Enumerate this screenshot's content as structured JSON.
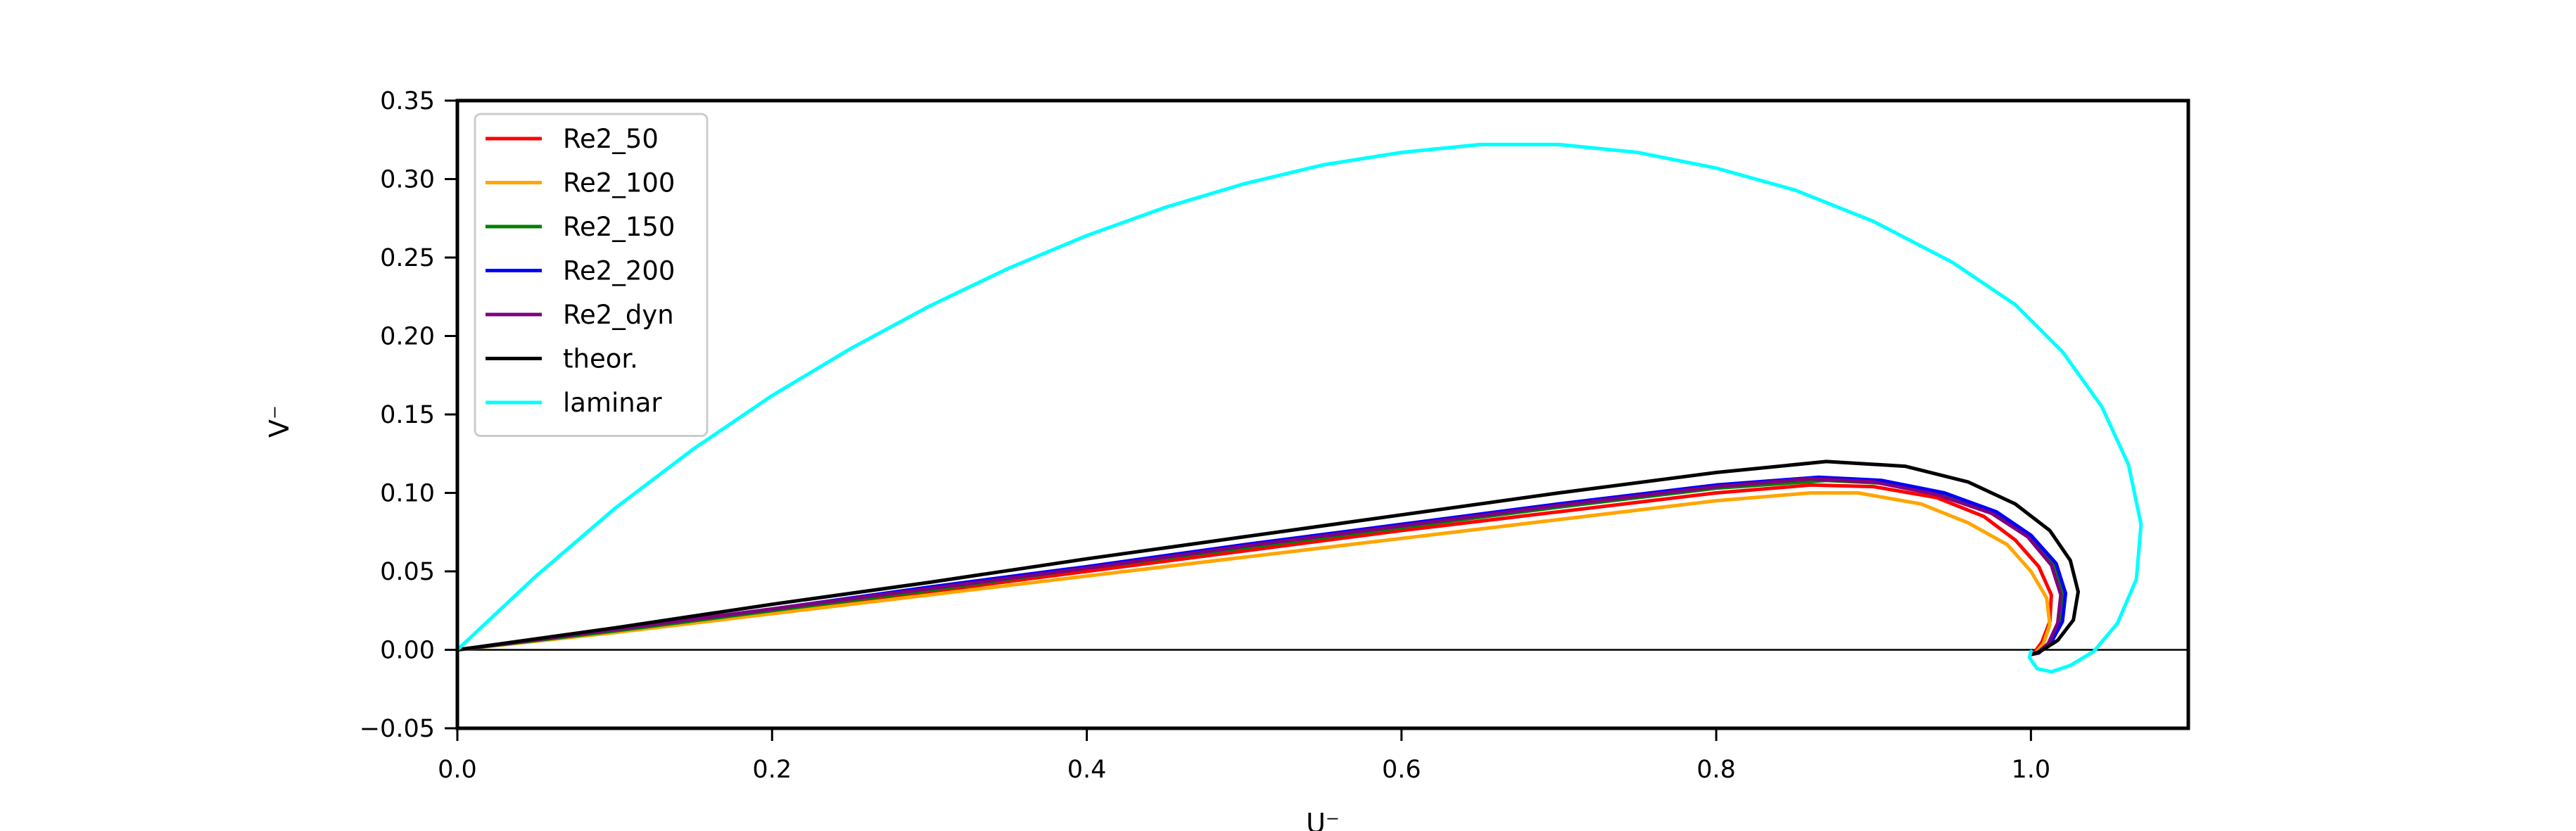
{
  "chart_data": {
    "type": "line",
    "title": "",
    "xlabel": "U⁻",
    "ylabel": "V⁻",
    "xlim": [
      0.0,
      1.1
    ],
    "ylim": [
      -0.05,
      0.35
    ],
    "xticks": [
      0.0,
      0.2,
      0.4,
      0.6,
      0.8,
      1.0
    ],
    "xtick_labels": [
      "0.0",
      "0.2",
      "0.4",
      "0.6",
      "0.8",
      "1.0"
    ],
    "yticks": [
      -0.05,
      0.0,
      0.05,
      0.1,
      0.15,
      0.2,
      0.25,
      0.3,
      0.35
    ],
    "ytick_labels": [
      "−0.05",
      "0.00",
      "0.05",
      "0.10",
      "0.15",
      "0.20",
      "0.25",
      "0.30",
      "0.35"
    ],
    "grid": false,
    "legend_position": "top-left",
    "zero_line": 0.0,
    "series": [
      {
        "name": "Re2_50",
        "color": "#ff0000",
        "points": [
          [
            0.0,
            0.0
          ],
          [
            0.1,
            0.012
          ],
          [
            0.2,
            0.024
          ],
          [
            0.3,
            0.037
          ],
          [
            0.4,
            0.05
          ],
          [
            0.5,
            0.063
          ],
          [
            0.6,
            0.076
          ],
          [
            0.7,
            0.088
          ],
          [
            0.8,
            0.1
          ],
          [
            0.86,
            0.105
          ],
          [
            0.9,
            0.104
          ],
          [
            0.94,
            0.097
          ],
          [
            0.97,
            0.085
          ],
          [
            0.99,
            0.07
          ],
          [
            1.005,
            0.053
          ],
          [
            1.013,
            0.035
          ],
          [
            1.012,
            0.018
          ],
          [
            1.007,
            0.005
          ],
          [
            1.002,
            -0.002
          ],
          [
            1.0,
            -0.003
          ]
        ]
      },
      {
        "name": "Re2_100",
        "color": "#ffa500",
        "points": [
          [
            0.0,
            0.0
          ],
          [
            0.1,
            0.011
          ],
          [
            0.2,
            0.023
          ],
          [
            0.3,
            0.035
          ],
          [
            0.4,
            0.047
          ],
          [
            0.5,
            0.059
          ],
          [
            0.6,
            0.071
          ],
          [
            0.7,
            0.083
          ],
          [
            0.8,
            0.095
          ],
          [
            0.86,
            0.1
          ],
          [
            0.89,
            0.1
          ],
          [
            0.93,
            0.093
          ],
          [
            0.96,
            0.081
          ],
          [
            0.985,
            0.067
          ],
          [
            1.0,
            0.05
          ],
          [
            1.01,
            0.033
          ],
          [
            1.012,
            0.016
          ],
          [
            1.008,
            0.004
          ],
          [
            1.003,
            -0.002
          ],
          [
            1.0,
            -0.003
          ]
        ]
      },
      {
        "name": "Re2_150",
        "color": "#008000",
        "points": [
          [
            0.0,
            0.0
          ],
          [
            0.1,
            0.012
          ],
          [
            0.2,
            0.025
          ],
          [
            0.3,
            0.038
          ],
          [
            0.4,
            0.052
          ],
          [
            0.5,
            0.065
          ],
          [
            0.6,
            0.078
          ],
          [
            0.7,
            0.091
          ],
          [
            0.8,
            0.103
          ],
          [
            0.87,
            0.108
          ],
          [
            0.91,
            0.106
          ],
          [
            0.95,
            0.098
          ],
          [
            0.98,
            0.086
          ],
          [
            1.0,
            0.072
          ],
          [
            1.015,
            0.054
          ],
          [
            1.021,
            0.035
          ],
          [
            1.019,
            0.017
          ],
          [
            1.012,
            0.004
          ],
          [
            1.004,
            -0.002
          ],
          [
            1.0,
            -0.003
          ]
        ]
      },
      {
        "name": "Re2_200",
        "color": "#0000ff",
        "points": [
          [
            0.0,
            0.0
          ],
          [
            0.1,
            0.013
          ],
          [
            0.2,
            0.026
          ],
          [
            0.3,
            0.04
          ],
          [
            0.4,
            0.053
          ],
          [
            0.5,
            0.067
          ],
          [
            0.6,
            0.08
          ],
          [
            0.7,
            0.093
          ],
          [
            0.8,
            0.105
          ],
          [
            0.865,
            0.11
          ],
          [
            0.905,
            0.108
          ],
          [
            0.945,
            0.1
          ],
          [
            0.978,
            0.088
          ],
          [
            1.0,
            0.073
          ],
          [
            1.016,
            0.055
          ],
          [
            1.022,
            0.036
          ],
          [
            1.02,
            0.018
          ],
          [
            1.013,
            0.005
          ],
          [
            1.005,
            -0.002
          ],
          [
            1.0,
            -0.003
          ]
        ]
      },
      {
        "name": "Re2_dyn",
        "color": "#800080",
        "points": [
          [
            0.0,
            0.0
          ],
          [
            0.1,
            0.013
          ],
          [
            0.2,
            0.026
          ],
          [
            0.3,
            0.039
          ],
          [
            0.4,
            0.052
          ],
          [
            0.5,
            0.066
          ],
          [
            0.6,
            0.079
          ],
          [
            0.7,
            0.092
          ],
          [
            0.8,
            0.104
          ],
          [
            0.86,
            0.109
          ],
          [
            0.9,
            0.107
          ],
          [
            0.94,
            0.099
          ],
          [
            0.975,
            0.087
          ],
          [
            0.998,
            0.072
          ],
          [
            1.013,
            0.054
          ],
          [
            1.019,
            0.035
          ],
          [
            1.017,
            0.017
          ],
          [
            1.011,
            0.004
          ],
          [
            1.004,
            -0.002
          ],
          [
            1.0,
            -0.003
          ]
        ]
      },
      {
        "name": "theor.",
        "color": "#000000",
        "points": [
          [
            0.0,
            0.0
          ],
          [
            0.1,
            0.014
          ],
          [
            0.2,
            0.029
          ],
          [
            0.3,
            0.043
          ],
          [
            0.4,
            0.058
          ],
          [
            0.5,
            0.072
          ],
          [
            0.6,
            0.086
          ],
          [
            0.7,
            0.1
          ],
          [
            0.8,
            0.113
          ],
          [
            0.87,
            0.12
          ],
          [
            0.92,
            0.117
          ],
          [
            0.96,
            0.107
          ],
          [
            0.99,
            0.093
          ],
          [
            1.012,
            0.076
          ],
          [
            1.025,
            0.057
          ],
          [
            1.03,
            0.037
          ],
          [
            1.027,
            0.019
          ],
          [
            1.017,
            0.006
          ],
          [
            1.006,
            -0.001
          ],
          [
            1.0,
            -0.003
          ]
        ]
      },
      {
        "name": "laminar",
        "color": "#00ffff",
        "points": [
          [
            0.0,
            0.0
          ],
          [
            0.05,
            0.047
          ],
          [
            0.1,
            0.09
          ],
          [
            0.15,
            0.128
          ],
          [
            0.2,
            0.162
          ],
          [
            0.25,
            0.192
          ],
          [
            0.3,
            0.219
          ],
          [
            0.35,
            0.243
          ],
          [
            0.4,
            0.264
          ],
          [
            0.45,
            0.282
          ],
          [
            0.5,
            0.297
          ],
          [
            0.55,
            0.309
          ],
          [
            0.6,
            0.317
          ],
          [
            0.65,
            0.322
          ],
          [
            0.7,
            0.322
          ],
          [
            0.75,
            0.317
          ],
          [
            0.8,
            0.307
          ],
          [
            0.85,
            0.293
          ],
          [
            0.9,
            0.273
          ],
          [
            0.95,
            0.247
          ],
          [
            0.99,
            0.22
          ],
          [
            1.02,
            0.19
          ],
          [
            1.045,
            0.155
          ],
          [
            1.062,
            0.118
          ],
          [
            1.07,
            0.08
          ],
          [
            1.067,
            0.045
          ],
          [
            1.055,
            0.017
          ],
          [
            1.04,
            -0.001
          ],
          [
            1.025,
            -0.01
          ],
          [
            1.013,
            -0.014
          ],
          [
            1.004,
            -0.012
          ],
          [
            0.999,
            -0.005
          ],
          [
            1.0,
            -0.001
          ]
        ]
      }
    ]
  }
}
